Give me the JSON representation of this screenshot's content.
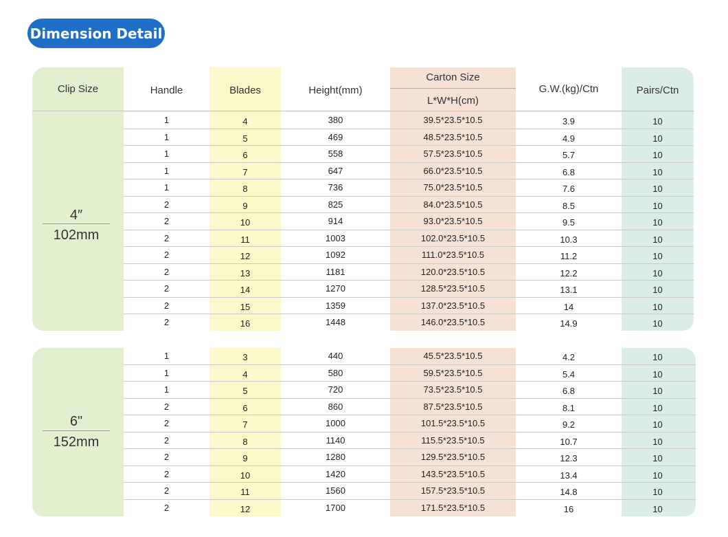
{
  "title": "Dimension Detail",
  "headers": {
    "clip_size": "Clip Size",
    "handle": "Handle",
    "blades": "Blades",
    "height": "Height(mm)",
    "carton_size": "Carton Size",
    "carton_unit": "L*W*H(cm)",
    "gw": "G.W.(kg)/Ctn",
    "pairs": "Pairs/Ctn"
  },
  "groups": [
    {
      "size_in": "4″",
      "size_mm": "102mm",
      "rows": [
        [
          "1",
          "4",
          "380",
          "39.5*23.5*10.5",
          "3.9",
          "10"
        ],
        [
          "1",
          "5",
          "469",
          "48.5*23.5*10.5",
          "4.9",
          "10"
        ],
        [
          "1",
          "6",
          "558",
          "57.5*23.5*10.5",
          "5.7",
          "10"
        ],
        [
          "1",
          "7",
          "647",
          "66.0*23.5*10.5",
          "6.8",
          "10"
        ],
        [
          "1",
          "8",
          "736",
          "75.0*23.5*10.5",
          "7.6",
          "10"
        ],
        [
          "2",
          "9",
          "825",
          "84.0*23.5*10.5",
          "8.5",
          "10"
        ],
        [
          "2",
          "10",
          "914",
          "93.0*23.5*10.5",
          "9.5",
          "10"
        ],
        [
          "2",
          "11",
          "1003",
          "102.0*23.5*10.5",
          "10.3",
          "10"
        ],
        [
          "2",
          "12",
          "1092",
          "111.0*23.5*10.5",
          "11.2",
          "10"
        ],
        [
          "2",
          "13",
          "1181",
          "120.0*23.5*10.5",
          "12.2",
          "10"
        ],
        [
          "2",
          "14",
          "1270",
          "128.5*23.5*10.5",
          "13.1",
          "10"
        ],
        [
          "2",
          "15",
          "1359",
          "137.0*23.5*10.5",
          "14",
          "10"
        ],
        [
          "2",
          "16",
          "1448",
          "146.0*23.5*10.5",
          "14.9",
          "10"
        ]
      ]
    },
    {
      "size_in": "6\"",
      "size_mm": "152mm",
      "rows": [
        [
          "1",
          "3",
          "440",
          "45.5*23.5*10.5",
          "4.2",
          "10"
        ],
        [
          "1",
          "4",
          "580",
          "59.5*23.5*10.5",
          "5.4",
          "10"
        ],
        [
          "1",
          "5",
          "720",
          "73.5*23.5*10.5",
          "6.8",
          "10"
        ],
        [
          "2",
          "6",
          "860",
          "87.5*23.5*10.5",
          "8.1",
          "10"
        ],
        [
          "2",
          "7",
          "1000",
          "101.5*23.5*10.5",
          "9.2",
          "10"
        ],
        [
          "2",
          "8",
          "1140",
          "115.5*23.5*10.5",
          "10.7",
          "10"
        ],
        [
          "2",
          "9",
          "1280",
          "129.5*23.5*10.5",
          "12.3",
          "10"
        ],
        [
          "2",
          "10",
          "1420",
          "143.5*23.5*10.5",
          "13.4",
          "10"
        ],
        [
          "2",
          "11",
          "1560",
          "157.5*23.5*10.5",
          "14.8",
          "10"
        ],
        [
          "2",
          "12",
          "1700",
          "171.5*23.5*10.5",
          "16",
          "10"
        ]
      ]
    }
  ]
}
